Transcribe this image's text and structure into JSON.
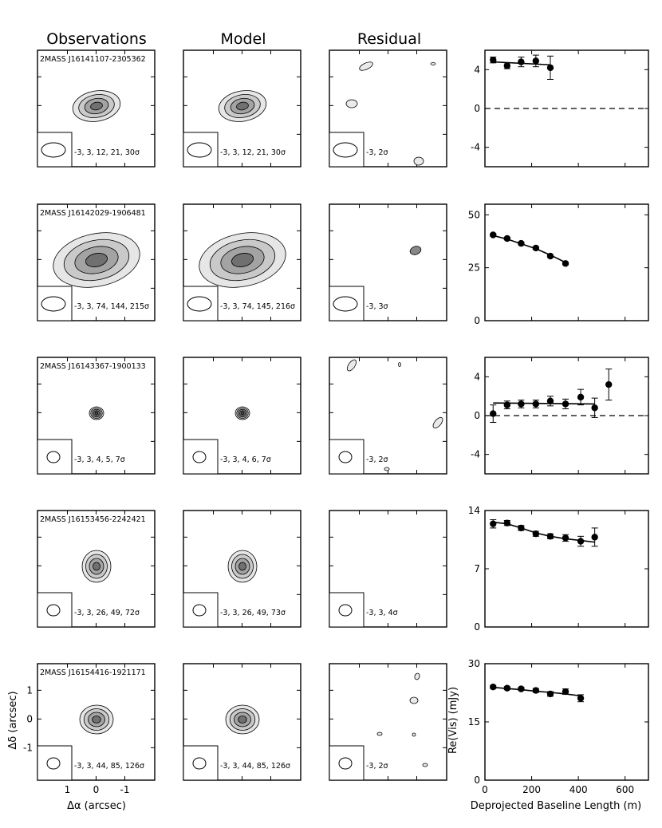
{
  "column_headers": [
    "Observations",
    "Model",
    "Residual"
  ],
  "image_axes": {
    "xlabel": "Δα (arcsec)",
    "ylabel": "Δδ (arcsec)",
    "xticks": [
      "1",
      "0",
      "-1"
    ],
    "yticks": [
      "1",
      "0",
      "-1"
    ]
  },
  "vis_axes": {
    "xlabel": "Deprojected Baseline Length (m)",
    "ylabel": "Re(Vis) (mJy)",
    "xticks": [
      "0",
      "200",
      "400",
      "600"
    ]
  },
  "chart_data": [
    {
      "type": "scatter",
      "source": "2MASS J16141107-2305362",
      "obs_levels": "-3, 3, 12, 21, 30σ",
      "model_levels": "-3, 3, 12, 21, 30σ",
      "resid_levels": "-3, 2σ",
      "xlim": [
        0,
        700
      ],
      "ylim": [
        -6,
        6
      ],
      "yticks": [
        "4",
        "0",
        "-4"
      ],
      "zero_line": true,
      "x": [
        35,
        95,
        155,
        218,
        280
      ],
      "y": [
        5.0,
        4.4,
        4.8,
        4.9,
        4.2
      ],
      "yerr": [
        0.3,
        0.3,
        0.5,
        0.6,
        1.2
      ],
      "model_x": [
        35,
        280
      ],
      "model_y": [
        4.8,
        4.5
      ]
    },
    {
      "type": "scatter",
      "source": "2MASS J16142029-1906481",
      "obs_levels": "-3, 3, 74, 144, 215σ",
      "model_levels": "-3, 3, 74, 145, 216σ",
      "resid_levels": "-3, 3σ",
      "xlim": [
        0,
        700
      ],
      "ylim": [
        0,
        55
      ],
      "yticks": [
        "50",
        "25",
        "0"
      ],
      "zero_line": false,
      "x": [
        35,
        95,
        155,
        218,
        280,
        345
      ],
      "y": [
        40.5,
        38.8,
        36.5,
        34.3,
        30.5,
        27.0
      ],
      "yerr": [
        0.6,
        0.6,
        0.6,
        0.6,
        0.6,
        0.6
      ],
      "model_x": [
        35,
        95,
        155,
        218,
        280,
        345
      ],
      "model_y": [
        40.2,
        38.5,
        36.3,
        34.0,
        31.0,
        27.5
      ]
    },
    {
      "type": "scatter",
      "source": "2MASS J16143367-1900133",
      "obs_levels": "-3, 3, 4, 5, 7σ",
      "model_levels": "-3, 3, 4, 6, 7σ",
      "resid_levels": "-3, 2σ",
      "xlim": [
        0,
        700
      ],
      "ylim": [
        -6,
        6
      ],
      "yticks": [
        "4",
        "0",
        "-4"
      ],
      "zero_line": true,
      "x": [
        35,
        95,
        155,
        218,
        280,
        345,
        410,
        470,
        530
      ],
      "y": [
        0.2,
        1.1,
        1.2,
        1.2,
        1.5,
        1.2,
        1.9,
        0.8,
        3.2
      ],
      "yerr": [
        0.9,
        0.4,
        0.4,
        0.4,
        0.5,
        0.5,
        0.8,
        1.0,
        1.6
      ],
      "model_x": [
        35,
        470
      ],
      "model_y": [
        1.3,
        1.2
      ]
    },
    {
      "type": "scatter",
      "source": "2MASS J16153456-2242421",
      "obs_levels": "-3, 3, 26, 49, 72σ",
      "model_levels": "-3, 3, 26, 49, 73σ",
      "resid_levels": "-3, 3, 4σ",
      "xlim": [
        0,
        700
      ],
      "ylim": [
        0,
        14
      ],
      "yticks": [
        "14",
        "7",
        "0"
      ],
      "zero_line": false,
      "x": [
        35,
        95,
        155,
        218,
        280,
        345,
        410,
        470
      ],
      "y": [
        12.4,
        12.5,
        11.9,
        11.2,
        10.9,
        10.7,
        10.3,
        10.8
      ],
      "yerr": [
        0.5,
        0.3,
        0.3,
        0.3,
        0.3,
        0.4,
        0.6,
        1.1
      ],
      "model_x": [
        35,
        95,
        155,
        218,
        280,
        345,
        410,
        470
      ],
      "model_y": [
        12.6,
        12.4,
        11.9,
        11.3,
        10.9,
        10.6,
        10.4,
        10.2
      ]
    },
    {
      "type": "scatter",
      "source": "2MASS J16154416-1921171",
      "obs_levels": "-3, 3, 44, 85, 126σ",
      "model_levels": "-3, 3, 44, 85, 126σ",
      "resid_levels": "-3, 2σ",
      "xlim": [
        0,
        700
      ],
      "ylim": [
        0,
        30
      ],
      "yticks": [
        "30",
        "15",
        "0"
      ],
      "zero_line": false,
      "x": [
        35,
        95,
        155,
        218,
        280,
        345,
        410
      ],
      "y": [
        24.0,
        23.7,
        23.5,
        23.1,
        22.2,
        22.8,
        21.1
      ],
      "yerr": [
        0.4,
        0.4,
        0.4,
        0.5,
        0.6,
        0.7,
        0.9
      ],
      "model_x": [
        35,
        95,
        155,
        218,
        280,
        345,
        410
      ],
      "model_y": [
        23.9,
        23.6,
        23.3,
        22.9,
        22.6,
        22.2,
        21.7
      ]
    }
  ]
}
